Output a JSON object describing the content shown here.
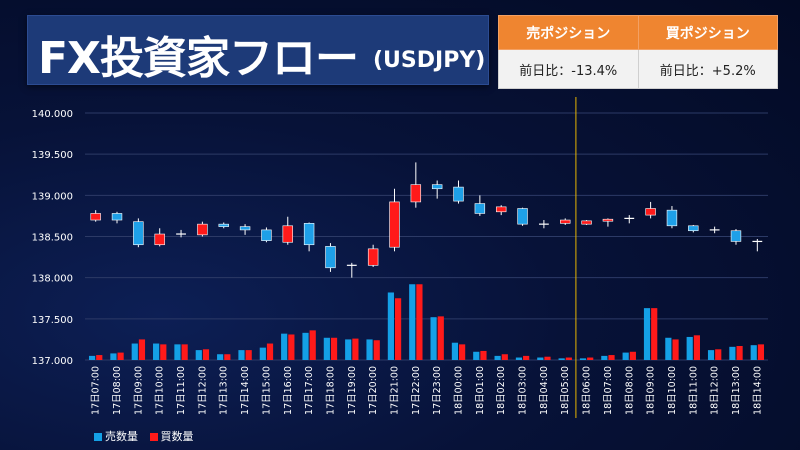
{
  "header": {
    "title": "FX投資家フロー",
    "pair": "(USDJPY)"
  },
  "positions": {
    "sell_label": "売ポジション",
    "buy_label": "買ポジション",
    "sell_change": "前日比：-13.4%",
    "buy_change": "前日比：+5.2%"
  },
  "legend": {
    "sell": "売数量",
    "buy": "買数量"
  },
  "colors": {
    "up_candle": "#ff1a1a",
    "down_candle": "#1ea0e8",
    "sell_bar": "#14a0e6",
    "buy_bar": "#ff1a1a",
    "gridline": "#2c3a66",
    "divider": "#e6b400"
  },
  "chart_data": {
    "type": "candlestick+bar",
    "categories": [
      "17日07:00",
      "17日08:00",
      "17日09:00",
      "17日10:00",
      "17日11:00",
      "17日12:00",
      "17日13:00",
      "17日14:00",
      "17日15:00",
      "17日16:00",
      "17日17:00",
      "17日18:00",
      "17日19:00",
      "17日20:00",
      "17日21:00",
      "17日22:00",
      "17日23:00",
      "18日00:00",
      "18日01:00",
      "18日02:00",
      "18日03:00",
      "18日04:00",
      "18日05:00",
      "18日06:00",
      "18日07:00",
      "18日08:00",
      "18日09:00",
      "18日10:00",
      "18日11:00",
      "18日12:00",
      "18日13:00",
      "18日14:00"
    ],
    "ylim": [
      137.0,
      140.0
    ],
    "yticks": [
      "137.000",
      "137.500",
      "138.000",
      "138.500",
      "139.000",
      "139.500",
      "140.000"
    ],
    "ytick_values": [
      137.0,
      137.5,
      138.0,
      138.5,
      139.0,
      139.5,
      140.0
    ],
    "grid": true,
    "legend_position": "bottom-left",
    "divider_after": "18日05:00",
    "candles": [
      {
        "open": 138.7,
        "close": 138.78,
        "high": 138.82,
        "low": 138.68
      },
      {
        "open": 138.78,
        "close": 138.7,
        "high": 138.8,
        "low": 138.66
      },
      {
        "open": 138.68,
        "close": 138.4,
        "high": 138.72,
        "low": 138.37
      },
      {
        "open": 138.4,
        "close": 138.53,
        "high": 138.6,
        "low": 138.38
      },
      {
        "open": 138.53,
        "close": 138.53,
        "high": 138.58,
        "low": 138.49
      },
      {
        "open": 138.52,
        "close": 138.65,
        "high": 138.68,
        "low": 138.5
      },
      {
        "open": 138.65,
        "close": 138.62,
        "high": 138.67,
        "low": 138.6
      },
      {
        "open": 138.62,
        "close": 138.58,
        "high": 138.65,
        "low": 138.52
      },
      {
        "open": 138.58,
        "close": 138.45,
        "high": 138.61,
        "low": 138.43
      },
      {
        "open": 138.43,
        "close": 138.63,
        "high": 138.74,
        "low": 138.4
      },
      {
        "open": 138.66,
        "close": 138.4,
        "high": 138.67,
        "low": 138.32
      },
      {
        "open": 138.38,
        "close": 138.12,
        "high": 138.42,
        "low": 138.07
      },
      {
        "open": 138.15,
        "close": 138.15,
        "high": 138.18,
        "low": 138.0
      },
      {
        "open": 138.15,
        "close": 138.35,
        "high": 138.4,
        "low": 138.13
      },
      {
        "open": 138.37,
        "close": 138.92,
        "high": 139.08,
        "low": 138.32
      },
      {
        "open": 138.92,
        "close": 139.13,
        "high": 139.4,
        "low": 138.85
      },
      {
        "open": 139.13,
        "close": 139.08,
        "high": 139.18,
        "low": 138.96
      },
      {
        "open": 139.1,
        "close": 138.93,
        "high": 139.18,
        "low": 138.9
      },
      {
        "open": 138.9,
        "close": 138.78,
        "high": 139.0,
        "low": 138.75
      },
      {
        "open": 138.8,
        "close": 138.86,
        "high": 138.88,
        "low": 138.76
      },
      {
        "open": 138.84,
        "close": 138.65,
        "high": 138.85,
        "low": 138.63
      },
      {
        "open": 138.65,
        "close": 138.65,
        "high": 138.7,
        "low": 138.6
      },
      {
        "open": 138.66,
        "close": 138.7,
        "high": 138.72,
        "low": 138.64
      },
      {
        "open": 138.65,
        "close": 138.69,
        "high": 138.7,
        "low": 138.64
      },
      {
        "open": 138.69,
        "close": 138.71,
        "high": 138.72,
        "low": 138.62
      },
      {
        "open": 138.72,
        "close": 138.72,
        "high": 138.76,
        "low": 138.66
      },
      {
        "open": 138.76,
        "close": 138.84,
        "high": 138.92,
        "low": 138.72
      },
      {
        "open": 138.82,
        "close": 138.63,
        "high": 138.87,
        "low": 138.6
      },
      {
        "open": 138.63,
        "close": 138.57,
        "high": 138.64,
        "low": 138.55
      },
      {
        "open": 138.58,
        "close": 138.58,
        "high": 138.62,
        "low": 138.54
      },
      {
        "open": 138.57,
        "close": 138.44,
        "high": 138.59,
        "low": 138.4
      },
      {
        "open": 138.44,
        "close": 138.44,
        "high": 138.47,
        "low": 138.32
      }
    ],
    "series": [
      {
        "name": "売数量",
        "values": [
          137.05,
          137.08,
          137.2,
          137.2,
          137.19,
          137.12,
          137.07,
          137.12,
          137.15,
          137.32,
          137.33,
          137.27,
          137.25,
          137.25,
          137.82,
          137.92,
          137.52,
          137.21,
          137.1,
          137.05,
          137.03,
          137.03,
          137.02,
          137.02,
          137.05,
          137.09,
          137.63,
          137.27,
          137.28,
          137.12,
          137.16,
          137.18
        ]
      },
      {
        "name": "買数量",
        "values": [
          137.06,
          137.09,
          137.25,
          137.19,
          137.19,
          137.13,
          137.07,
          137.12,
          137.2,
          137.31,
          137.36,
          137.27,
          137.26,
          137.24,
          137.75,
          137.92,
          137.53,
          137.19,
          137.11,
          137.07,
          137.05,
          137.04,
          137.03,
          137.03,
          137.06,
          137.1,
          137.63,
          137.25,
          137.3,
          137.13,
          137.17,
          137.19
        ]
      }
    ]
  }
}
